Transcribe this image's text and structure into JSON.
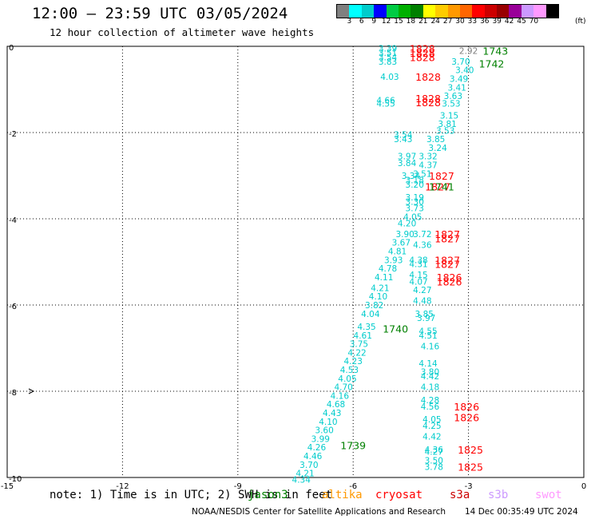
{
  "header": {
    "title": "12:00 – 23:59 UTC 03/05/2024",
    "subtitle": "12 hour collection of altimeter wave heights"
  },
  "color_scale": {
    "unit": "(ft)",
    "colors": [
      "#808080",
      "#00ffff",
      "#00cccc",
      "#0000ff",
      "#00cc44",
      "#00b000",
      "#008000",
      "#ffff00",
      "#ffcc00",
      "#ff9900",
      "#ff6600",
      "#ff0000",
      "#cc0000",
      "#990000",
      "#990099",
      "#cc99ff",
      "#ff99ff",
      "#000000"
    ],
    "ticks": [
      "3",
      "6",
      "9",
      "12",
      "15",
      "18",
      "21",
      "24",
      "27",
      "30",
      "33",
      "36",
      "39",
      "42",
      "45",
      "70"
    ]
  },
  "footer": {
    "note_prefix": "note: 1) Time is in UTC; 2) SWH is in feet",
    "satellites": [
      {
        "name": "jason3",
        "color": "#008000"
      },
      {
        "name": "altika",
        "color": "#ff9900"
      },
      {
        "name": "cryosat",
        "color": "#ff0000"
      },
      {
        "name": "s3a",
        "color": "#cc0000"
      },
      {
        "name": "s3b",
        "color": "#cc99ff"
      },
      {
        "name": "swot",
        "color": "#ff99ff"
      }
    ],
    "credit": "NOAA/NESDIS Center for Satellite Applications and Research",
    "timestamp": "14 Dec 00:35:49 UTC 2024"
  },
  "chart_data": {
    "type": "scatter",
    "title": "12:00 – 23:59 UTC 03/05/2024",
    "subtitle": "12 hour collection of altimeter wave heights",
    "xlabel": "",
    "ylabel": "",
    "xlim": [
      -15,
      0
    ],
    "ylim": [
      -10,
      0
    ],
    "grid": true,
    "x_ticks": [
      -15,
      -12,
      -9,
      -6,
      -3,
      0
    ],
    "y_ticks": [
      0,
      -2,
      -4,
      -6,
      -8,
      -10
    ],
    "wave_heights": [
      {
        "x": -5.1,
        "y": -0.05,
        "text": "3.39",
        "color": "#00cccc"
      },
      {
        "x": -5.1,
        "y": -0.15,
        "text": "3.51",
        "color": "#00cccc"
      },
      {
        "x": -5.1,
        "y": -0.25,
        "text": "3.54",
        "color": "#00cccc"
      },
      {
        "x": -5.1,
        "y": -0.35,
        "text": "3.83",
        "color": "#00cccc"
      },
      {
        "x": -3.0,
        "y": -0.1,
        "text": "2.92",
        "color": "#808080"
      },
      {
        "x": -3.2,
        "y": -0.35,
        "text": "3.70",
        "color": "#00cccc"
      },
      {
        "x": -3.1,
        "y": -0.55,
        "text": "3.40",
        "color": "#00cccc"
      },
      {
        "x": -3.25,
        "y": -0.75,
        "text": "3.49",
        "color": "#00cccc"
      },
      {
        "x": -5.05,
        "y": -0.7,
        "text": "4.03",
        "color": "#00cccc"
      },
      {
        "x": -3.3,
        "y": -0.95,
        "text": "3.41",
        "color": "#00cccc"
      },
      {
        "x": -3.4,
        "y": -1.15,
        "text": "3.63",
        "color": "#00cccc"
      },
      {
        "x": -5.15,
        "y": -1.25,
        "text": "4.66",
        "color": "#00cccc"
      },
      {
        "x": -5.15,
        "y": -1.32,
        "text": "4.55",
        "color": "#00cccc"
      },
      {
        "x": -3.45,
        "y": -1.32,
        "text": "3.53",
        "color": "#00cccc"
      },
      {
        "x": -3.5,
        "y": -1.6,
        "text": "3.15",
        "color": "#00cccc"
      },
      {
        "x": -3.55,
        "y": -1.8,
        "text": "3.81",
        "color": "#00cccc"
      },
      {
        "x": -3.6,
        "y": -1.95,
        "text": "3.53",
        "color": "#00cccc"
      },
      {
        "x": -4.7,
        "y": -2.05,
        "text": "3.54",
        "color": "#00cccc"
      },
      {
        "x": -4.7,
        "y": -2.15,
        "text": "3.43",
        "color": "#00cccc"
      },
      {
        "x": -3.85,
        "y": -2.15,
        "text": "3.85",
        "color": "#00cccc"
      },
      {
        "x": -3.8,
        "y": -2.35,
        "text": "3.24",
        "color": "#00cccc"
      },
      {
        "x": -4.6,
        "y": -2.55,
        "text": "3.97",
        "color": "#00cccc"
      },
      {
        "x": -4.6,
        "y": -2.7,
        "text": "3.84",
        "color": "#00cccc"
      },
      {
        "x": -4.05,
        "y": -2.55,
        "text": "3.32",
        "color": "#00cccc"
      },
      {
        "x": -4.05,
        "y": -2.75,
        "text": "4.37",
        "color": "#00cccc"
      },
      {
        "x": -4.5,
        "y": -3.0,
        "text": "3.34",
        "color": "#00cccc"
      },
      {
        "x": -4.2,
        "y": -2.95,
        "text": "3.51",
        "color": "#00cccc"
      },
      {
        "x": -4.4,
        "y": -3.1,
        "text": "3.18",
        "color": "#00cccc"
      },
      {
        "x": -4.4,
        "y": -3.2,
        "text": "3.20",
        "color": "#00cccc"
      },
      {
        "x": -4.4,
        "y": -3.5,
        "text": "3.19",
        "color": "#00cccc"
      },
      {
        "x": -4.4,
        "y": -3.6,
        "text": "3.30",
        "color": "#00cccc"
      },
      {
        "x": -4.4,
        "y": -3.75,
        "text": "3.73",
        "color": "#00cccc"
      },
      {
        "x": -4.45,
        "y": -3.95,
        "text": "4.05",
        "color": "#00cccc"
      },
      {
        "x": -4.6,
        "y": -4.1,
        "text": "4.20",
        "color": "#00cccc"
      },
      {
        "x": -4.65,
        "y": -4.35,
        "text": "3.90",
        "color": "#00cccc"
      },
      {
        "x": -4.2,
        "y": -4.35,
        "text": "3.72",
        "color": "#00cccc"
      },
      {
        "x": -4.75,
        "y": -4.55,
        "text": "3.67",
        "color": "#00cccc"
      },
      {
        "x": -4.2,
        "y": -4.6,
        "text": "4.36",
        "color": "#00cccc"
      },
      {
        "x": -4.85,
        "y": -4.75,
        "text": "4.81",
        "color": "#00cccc"
      },
      {
        "x": -4.95,
        "y": -4.95,
        "text": "3.93",
        "color": "#00cccc"
      },
      {
        "x": -4.3,
        "y": -4.95,
        "text": "4.38",
        "color": "#00cccc"
      },
      {
        "x": -4.3,
        "y": -5.05,
        "text": "4.31",
        "color": "#00cccc"
      },
      {
        "x": -5.1,
        "y": -5.15,
        "text": "4.78",
        "color": "#00cccc"
      },
      {
        "x": -4.3,
        "y": -5.3,
        "text": "4.15",
        "color": "#00cccc"
      },
      {
        "x": -5.2,
        "y": -5.35,
        "text": "4.11",
        "color": "#00cccc"
      },
      {
        "x": -4.3,
        "y": -5.45,
        "text": "4.07",
        "color": "#00cccc"
      },
      {
        "x": -5.3,
        "y": -5.6,
        "text": "4.21",
        "color": "#00cccc"
      },
      {
        "x": -4.2,
        "y": -5.65,
        "text": "4.27",
        "color": "#00cccc"
      },
      {
        "x": -5.35,
        "y": -5.8,
        "text": "4.10",
        "color": "#00cccc"
      },
      {
        "x": -4.2,
        "y": -5.9,
        "text": "4.48",
        "color": "#00cccc"
      },
      {
        "x": -5.45,
        "y": -6.0,
        "text": "3.82",
        "color": "#00cccc"
      },
      {
        "x": -5.55,
        "y": -6.2,
        "text": "4.04",
        "color": "#00cccc"
      },
      {
        "x": -4.15,
        "y": -6.2,
        "text": "3.85",
        "color": "#00cccc"
      },
      {
        "x": -4.1,
        "y": -6.3,
        "text": "3.97",
        "color": "#00cccc"
      },
      {
        "x": -5.65,
        "y": -6.5,
        "text": "4.35",
        "color": "#00cccc"
      },
      {
        "x": -4.05,
        "y": -6.6,
        "text": "4.55",
        "color": "#00cccc"
      },
      {
        "x": -4.05,
        "y": -6.7,
        "text": "4.51",
        "color": "#00cccc"
      },
      {
        "x": -5.75,
        "y": -6.7,
        "text": "4.61",
        "color": "#00cccc"
      },
      {
        "x": -5.85,
        "y": -6.9,
        "text": "3.75",
        "color": "#00cccc"
      },
      {
        "x": -4.0,
        "y": -6.95,
        "text": "4.16",
        "color": "#00cccc"
      },
      {
        "x": -5.9,
        "y": -7.1,
        "text": "4.22",
        "color": "#00cccc"
      },
      {
        "x": -6.0,
        "y": -7.3,
        "text": "4.23",
        "color": "#00cccc"
      },
      {
        "x": -4.05,
        "y": -7.35,
        "text": "4.14",
        "color": "#00cccc"
      },
      {
        "x": -6.1,
        "y": -7.5,
        "text": "4.53",
        "color": "#00cccc"
      },
      {
        "x": -4.0,
        "y": -7.55,
        "text": "3.80",
        "color": "#00cccc"
      },
      {
        "x": -4.0,
        "y": -7.65,
        "text": "4.42",
        "color": "#00cccc"
      },
      {
        "x": -6.15,
        "y": -7.7,
        "text": "4.05",
        "color": "#00cccc"
      },
      {
        "x": -4.0,
        "y": -7.9,
        "text": "4.18",
        "color": "#00cccc"
      },
      {
        "x": -6.25,
        "y": -7.9,
        "text": "4.70",
        "color": "#00cccc"
      },
      {
        "x": -6.35,
        "y": -8.1,
        "text": "4.16",
        "color": "#00cccc"
      },
      {
        "x": -4.0,
        "y": -8.2,
        "text": "4.28",
        "color": "#00cccc"
      },
      {
        "x": -6.45,
        "y": -8.3,
        "text": "4.68",
        "color": "#00cccc"
      },
      {
        "x": -4.0,
        "y": -8.35,
        "text": "4.56",
        "color": "#00cccc"
      },
      {
        "x": -6.55,
        "y": -8.5,
        "text": "4.43",
        "color": "#00cccc"
      },
      {
        "x": -3.95,
        "y": -8.65,
        "text": "4.05",
        "color": "#00cccc"
      },
      {
        "x": -6.65,
        "y": -8.7,
        "text": "4.10",
        "color": "#00cccc"
      },
      {
        "x": -3.95,
        "y": -8.8,
        "text": "4.25",
        "color": "#00cccc"
      },
      {
        "x": -6.75,
        "y": -8.9,
        "text": "3.60",
        "color": "#00cccc"
      },
      {
        "x": -3.95,
        "y": -9.05,
        "text": "4.42",
        "color": "#00cccc"
      },
      {
        "x": -6.85,
        "y": -9.1,
        "text": "3.99",
        "color": "#00cccc"
      },
      {
        "x": -6.95,
        "y": -9.3,
        "text": "4.26",
        "color": "#00cccc"
      },
      {
        "x": -3.9,
        "y": -9.35,
        "text": "4.36",
        "color": "#00cccc"
      },
      {
        "x": -3.9,
        "y": -9.4,
        "text": "4.27",
        "color": "#00cccc"
      },
      {
        "x": -7.05,
        "y": -9.5,
        "text": "4.46",
        "color": "#00cccc"
      },
      {
        "x": -3.9,
        "y": -9.6,
        "text": "3.50",
        "color": "#00cccc"
      },
      {
        "x": -7.15,
        "y": -9.7,
        "text": "3.70",
        "color": "#00cccc"
      },
      {
        "x": -3.9,
        "y": -9.75,
        "text": "3.78",
        "color": "#00cccc"
      },
      {
        "x": -7.25,
        "y": -9.9,
        "text": "4.21",
        "color": "#00cccc"
      },
      {
        "x": -7.35,
        "y": -10.05,
        "text": "4.34",
        "color": "#00cccc"
      }
    ],
    "pass_times": [
      {
        "x": -4.2,
        "y": -0.05,
        "text": "1828",
        "color": "#ff0000"
      },
      {
        "x": -4.2,
        "y": -0.15,
        "text": "1828",
        "color": "#ff0000"
      },
      {
        "x": -4.2,
        "y": -0.25,
        "text": "1828",
        "color": "#ff0000"
      },
      {
        "x": -2.3,
        "y": -0.1,
        "text": "1743",
        "color": "#008000"
      },
      {
        "x": -2.4,
        "y": -0.4,
        "text": "1742",
        "color": "#008000"
      },
      {
        "x": -4.05,
        "y": -0.7,
        "text": "1828",
        "color": "#ff0000"
      },
      {
        "x": -4.05,
        "y": -1.2,
        "text": "1828",
        "color": "#ff0000"
      },
      {
        "x": -4.05,
        "y": -1.3,
        "text": "1828",
        "color": "#ff0000"
      },
      {
        "x": -3.7,
        "y": -3.0,
        "text": "1827",
        "color": "#ff0000"
      },
      {
        "x": -3.8,
        "y": -3.25,
        "text": "1827",
        "color": "#ff0000"
      },
      {
        "x": -3.7,
        "y": -3.25,
        "text": "1741",
        "color": "#008000"
      },
      {
        "x": -3.55,
        "y": -4.35,
        "text": "1827",
        "color": "#ff0000"
      },
      {
        "x": -3.55,
        "y": -4.45,
        "text": "1827",
        "color": "#ff0000"
      },
      {
        "x": -3.55,
        "y": -4.95,
        "text": "1827",
        "color": "#ff0000"
      },
      {
        "x": -3.55,
        "y": -5.05,
        "text": "1827",
        "color": "#ff0000"
      },
      {
        "x": -3.5,
        "y": -5.35,
        "text": "1826",
        "color": "#ff0000"
      },
      {
        "x": -3.5,
        "y": -5.45,
        "text": "1826",
        "color": "#ff0000"
      },
      {
        "x": -4.9,
        "y": -6.55,
        "text": "1740",
        "color": "#008000"
      },
      {
        "x": -3.05,
        "y": -8.35,
        "text": "1826",
        "color": "#ff0000"
      },
      {
        "x": -3.05,
        "y": -8.6,
        "text": "1826",
        "color": "#ff0000"
      },
      {
        "x": -6.0,
        "y": -9.25,
        "text": "1739",
        "color": "#008000"
      },
      {
        "x": -2.95,
        "y": -9.35,
        "text": "1825",
        "color": "#ff0000"
      },
      {
        "x": -2.95,
        "y": -9.75,
        "text": "1825",
        "color": "#ff0000"
      }
    ]
  }
}
